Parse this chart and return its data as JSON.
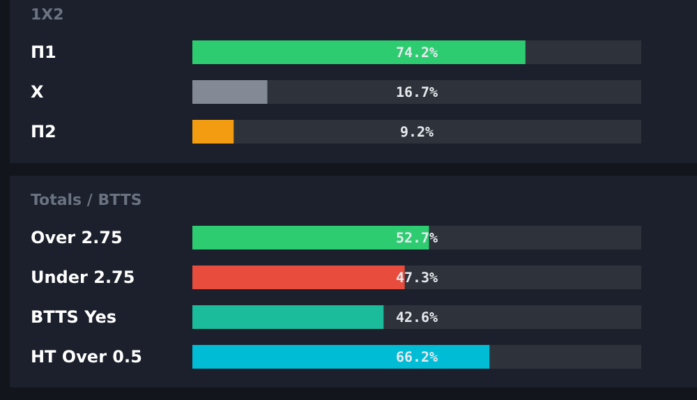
{
  "chart_data": [
    {
      "type": "bar",
      "orientation": "horizontal",
      "title": "1X2",
      "categories": [
        "П1",
        "X",
        "П2"
      ],
      "values": [
        74.2,
        16.7,
        9.2
      ],
      "colors": [
        "#2ecc71",
        "#838995",
        "#f39c12"
      ],
      "value_labels": [
        "74.2%",
        "16.7%",
        "9.2%"
      ],
      "xlim": [
        0,
        100
      ],
      "tick_labels": "y"
    },
    {
      "type": "bar",
      "orientation": "horizontal",
      "title": "Totals / BTTS",
      "categories": [
        "Over 2.75",
        "Under 2.75",
        "BTTS Yes",
        "HT Over 0.5"
      ],
      "values": [
        52.7,
        47.3,
        42.6,
        66.2
      ],
      "colors": [
        "#2ecc71",
        "#e74c3c",
        "#1abc9c",
        "#00bcd4"
      ],
      "value_labels": [
        "52.7%",
        "47.3%",
        "42.6%",
        "66.2%"
      ],
      "xlim": [
        0,
        100
      ],
      "tick_labels": "y"
    }
  ]
}
